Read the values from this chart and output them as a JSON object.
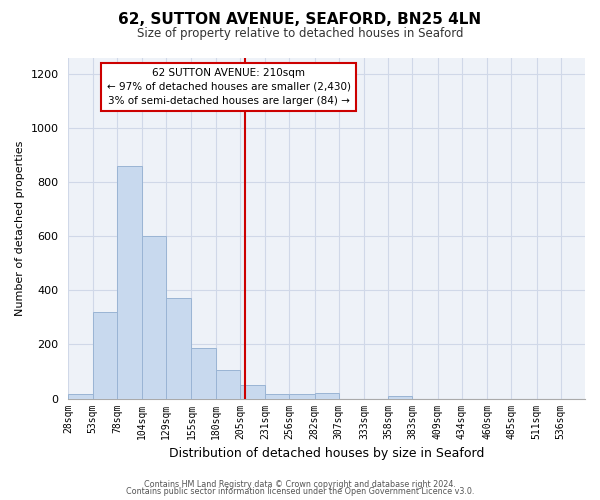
{
  "title": "62, SUTTON AVENUE, SEAFORD, BN25 4LN",
  "subtitle": "Size of property relative to detached houses in Seaford",
  "xlabel": "Distribution of detached houses by size in Seaford",
  "ylabel": "Number of detached properties",
  "bar_color": "#c8d9ee",
  "bar_edge_color": "#9ab4d4",
  "bin_labels": [
    "28sqm",
    "53sqm",
    "78sqm",
    "104sqm",
    "129sqm",
    "155sqm",
    "180sqm",
    "205sqm",
    "231sqm",
    "256sqm",
    "282sqm",
    "307sqm",
    "333sqm",
    "358sqm",
    "383sqm",
    "409sqm",
    "434sqm",
    "460sqm",
    "485sqm",
    "511sqm",
    "536sqm"
  ],
  "bar_heights": [
    15,
    320,
    860,
    600,
    370,
    185,
    105,
    50,
    17,
    15,
    20,
    0,
    0,
    10,
    0,
    0,
    0,
    0,
    0,
    0,
    0
  ],
  "bin_edges": [
    28,
    53,
    78,
    104,
    129,
    155,
    180,
    205,
    231,
    256,
    282,
    307,
    333,
    358,
    383,
    409,
    434,
    460,
    485,
    511,
    536,
    561
  ],
  "vline_x": 210,
  "vline_color": "#cc0000",
  "annotation_line1": "62 SUTTON AVENUE: 210sqm",
  "annotation_line2": "← 97% of detached houses are smaller (2,430)",
  "annotation_line3": "3% of semi-detached houses are larger (84) →",
  "annotation_box_color": "#ffffff",
  "annotation_box_edge": "#cc0000",
  "ylim": [
    0,
    1260
  ],
  "yticks": [
    0,
    200,
    400,
    600,
    800,
    1000,
    1200
  ],
  "grid_color": "#d0d8e8",
  "background_color": "#ffffff",
  "plot_bg_color": "#eef2f8",
  "footer_line1": "Contains HM Land Registry data © Crown copyright and database right 2024.",
  "footer_line2": "Contains public sector information licensed under the Open Government Licence v3.0."
}
